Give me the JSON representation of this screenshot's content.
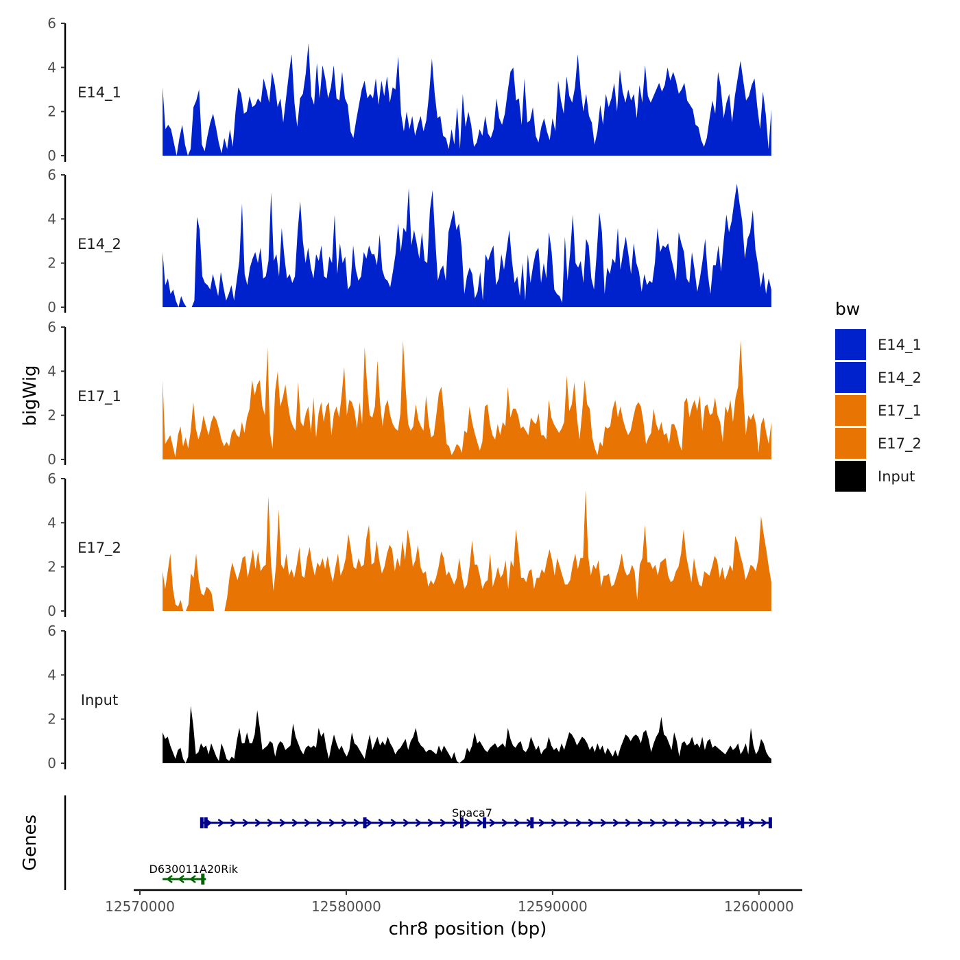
{
  "chart_data": {
    "type": "area",
    "chromosome": "chr8",
    "x_axis": {
      "label": "chr8 position (bp)",
      "range": [
        12569700,
        12602100
      ],
      "ticks": [
        12570000,
        12580000,
        12590000,
        12600000
      ],
      "tick_labels": [
        "12570000",
        "12580000",
        "12590000",
        "12600000"
      ]
    },
    "y_axis": {
      "label": "bigWig",
      "range": [
        0,
        6
      ],
      "ticks": [
        0,
        2,
        4,
        6
      ],
      "tick_labels": [
        "0",
        "2",
        "4",
        "6"
      ]
    },
    "genes_axis_label": "Genes",
    "legend": {
      "title": "bw",
      "items": [
        {
          "label": "E14_1",
          "color": "#0022CC"
        },
        {
          "label": "E14_2",
          "color": "#0022CC"
        },
        {
          "label": "E17_1",
          "color": "#E87503"
        },
        {
          "label": "E17_2",
          "color": "#E87503"
        },
        {
          "label": "Input",
          "color": "#000000"
        }
      ]
    },
    "tracks": [
      {
        "name": "E14_1",
        "color": "#0022CC",
        "x_start": 12571100,
        "x_end": 12600600,
        "values": [
          3.1,
          1.2,
          1.4,
          1.2,
          0.6,
          0.0,
          0.8,
          1.4,
          0.5,
          0.0,
          0.3,
          2.2,
          2.5,
          3.0,
          0.5,
          0.2,
          0.9,
          1.5,
          1.9,
          1.3,
          0.6,
          0.1,
          0.8,
          0.3,
          1.2,
          0.4,
          2.0,
          3.1,
          2.8,
          1.9,
          2.0,
          2.7,
          2.2,
          2.3,
          2.6,
          2.4,
          3.5,
          3.0,
          2.4,
          3.8,
          3.2,
          2.2,
          2.6,
          1.5,
          2.6,
          3.7,
          4.6,
          2.4,
          1.3,
          2.6,
          2.8,
          3.7,
          5.1,
          2.7,
          2.3,
          4.2,
          2.6,
          4.1,
          3.5,
          2.6,
          3.1,
          4.1,
          2.6,
          2.5,
          3.8,
          2.6,
          2.3,
          1.1,
          0.8,
          1.6,
          2.3,
          3.0,
          3.4,
          2.6,
          2.8,
          2.6,
          3.5,
          2.3,
          3.4,
          2.7,
          3.6,
          2.4,
          3.1,
          3.0,
          4.5,
          1.9,
          1.1,
          2.0,
          1.2,
          1.8,
          0.9,
          1.4,
          1.8,
          1.1,
          1.6,
          2.8,
          4.4,
          2.8,
          1.7,
          1.8,
          0.9,
          0.8,
          0.3,
          1.2,
          0.5,
          2.2,
          0.3,
          2.8,
          1.3,
          2.0,
          1.4,
          0.4,
          0.6,
          1.2,
          0.9,
          1.8,
          1.0,
          0.8,
          1.2,
          2.6,
          1.7,
          1.4,
          1.9,
          2.9,
          3.8,
          4.0,
          2.5,
          2.6,
          1.4,
          3.5,
          1.5,
          1.6,
          2.2,
          0.9,
          0.6,
          1.3,
          1.7,
          1.1,
          0.7,
          1.7,
          1.1,
          3.4,
          2.5,
          1.9,
          3.6,
          2.7,
          2.4,
          3.1,
          4.6,
          3.0,
          2.0,
          2.8,
          1.8,
          1.5,
          0.5,
          1.1,
          2.3,
          1.4,
          2.8,
          2.2,
          2.6,
          3.3,
          2.0,
          3.9,
          2.9,
          2.4,
          3.0,
          2.5,
          2.8,
          1.7,
          3.2,
          2.4,
          4.1,
          2.7,
          2.4,
          2.7,
          3.0,
          3.3,
          2.9,
          3.2,
          4.0,
          3.4,
          3.8,
          3.4,
          2.8,
          3.0,
          3.3,
          2.5,
          2.3,
          2.1,
          1.4,
          1.3,
          0.7,
          0.4,
          0.8,
          1.7,
          2.5,
          1.9,
          3.8,
          3.1,
          1.7,
          2.4,
          2.8,
          1.5,
          2.7,
          3.5,
          4.3,
          3.4,
          2.5,
          2.7,
          3.2,
          3.5,
          2.2,
          1.2,
          2.9,
          1.9,
          0.3,
          2.1
        ]
      },
      {
        "name": "E14_2",
        "color": "#0022CC",
        "x_start": 12571100,
        "x_end": 12600600,
        "values": [
          2.5,
          1.0,
          1.3,
          0.6,
          0.8,
          0.3,
          0.0,
          0.5,
          0.2,
          0.0,
          0.0,
          0.0,
          0.3,
          4.1,
          3.5,
          1.4,
          1.1,
          1.0,
          0.8,
          1.5,
          1.0,
          0.5,
          1.6,
          0.9,
          0.3,
          0.6,
          1.0,
          0.3,
          1.2,
          2.1,
          4.7,
          1.5,
          1.0,
          1.8,
          2.2,
          2.5,
          2.0,
          2.7,
          1.3,
          1.4,
          2.1,
          5.2,
          2.1,
          2.4,
          1.4,
          3.6,
          2.3,
          1.3,
          1.5,
          1.1,
          1.4,
          3.4,
          4.8,
          3.0,
          2.0,
          2.7,
          1.8,
          1.3,
          2.4,
          2.1,
          2.8,
          1.4,
          1.3,
          2.3,
          2.0,
          4.2,
          1.5,
          2.9,
          2.0,
          2.3,
          0.8,
          1.0,
          2.8,
          1.7,
          1.2,
          1.4,
          2.5,
          2.2,
          2.8,
          2.4,
          2.4,
          1.9,
          3.3,
          1.7,
          1.3,
          1.2,
          0.9,
          1.6,
          2.4,
          3.8,
          2.5,
          3.6,
          3.4,
          5.4,
          2.8,
          3.5,
          2.9,
          2.2,
          3.4,
          2.1,
          2.0,
          4.4,
          5.3,
          3.1,
          1.2,
          1.7,
          1.9,
          1.2,
          3.4,
          3.9,
          4.4,
          3.5,
          3.8,
          2.7,
          0.6,
          1.4,
          1.8,
          1.5,
          0.4,
          0.7,
          1.6,
          0.3,
          2.4,
          2.1,
          2.5,
          2.8,
          1.0,
          1.3,
          2.4,
          1.7,
          2.6,
          3.5,
          2.1,
          1.1,
          1.4,
          0.5,
          2.0,
          0.3,
          2.4,
          1.1,
          1.9,
          2.5,
          2.7,
          1.1,
          2.0,
          1.3,
          3.4,
          2.5,
          0.8,
          0.6,
          0.5,
          0.2,
          3.2,
          1.2,
          2.5,
          4.2,
          2.0,
          1.8,
          2.1,
          1.1,
          3.1,
          2.8,
          1.3,
          0.8,
          2.4,
          4.3,
          3.4,
          0.6,
          1.8,
          1.5,
          2.2,
          2.0,
          3.6,
          1.7,
          2.5,
          3.2,
          2.4,
          1.5,
          2.9,
          2.0,
          1.6,
          0.7,
          1.5,
          1.0,
          1.2,
          1.1,
          2.0,
          3.6,
          2.5,
          2.8,
          2.7,
          2.9,
          2.3,
          1.8,
          1.2,
          3.4,
          2.9,
          2.5,
          1.3,
          1.1,
          2.5,
          1.7,
          0.7,
          1.3,
          2.1,
          3.1,
          1.5,
          0.6,
          1.9,
          1.9,
          2.8,
          1.6,
          3.0,
          4.2,
          3.4,
          3.9,
          4.8,
          5.6,
          4.7,
          3.9,
          2.2,
          3.1,
          3.4,
          4.4,
          2.6,
          1.9,
          0.9,
          1.6,
          0.6,
          1.3,
          0.8
        ]
      },
      {
        "name": "E17_1",
        "color": "#E87503",
        "x_start": 12571100,
        "x_end": 12600600,
        "values": [
          3.6,
          0.7,
          0.9,
          1.1,
          0.6,
          0.1,
          1.1,
          1.5,
          0.6,
          1.0,
          0.5,
          1.3,
          2.6,
          1.4,
          0.9,
          1.3,
          2.0,
          1.5,
          1.1,
          1.7,
          2.0,
          1.8,
          1.4,
          0.9,
          0.6,
          0.8,
          0.6,
          1.2,
          1.4,
          1.1,
          1.0,
          1.7,
          1.2,
          1.9,
          2.3,
          3.6,
          2.9,
          3.4,
          3.6,
          2.4,
          2.0,
          5.1,
          1.2,
          0.5,
          3.1,
          4.0,
          2.4,
          2.8,
          3.4,
          2.5,
          1.8,
          1.5,
          1.3,
          3.5,
          1.7,
          1.5,
          2.1,
          2.4,
          1.2,
          2.8,
          1.0,
          2.1,
          2.6,
          1.7,
          2.4,
          2.6,
          1.1,
          2.1,
          2.4,
          1.9,
          2.9,
          4.2,
          2.0,
          2.7,
          2.6,
          2.2,
          1.4,
          2.6,
          1.6,
          5.1,
          3.3,
          2.0,
          1.9,
          2.4,
          4.5,
          2.6,
          1.5,
          2.4,
          2.7,
          2.0,
          1.6,
          1.4,
          1.3,
          2.1,
          5.4,
          3.3,
          1.6,
          1.3,
          1.5,
          2.5,
          1.8,
          1.5,
          1.3,
          2.9,
          1.7,
          1.0,
          1.1,
          2.0,
          3.0,
          3.3,
          2.1,
          0.7,
          0.6,
          0.2,
          0.4,
          0.7,
          0.6,
          0.3,
          1.3,
          1.2,
          2.4,
          1.7,
          1.2,
          0.8,
          0.4,
          0.8,
          2.4,
          2.5,
          1.6,
          1.1,
          0.9,
          1.6,
          1.1,
          1.7,
          1.5,
          3.3,
          1.9,
          2.3,
          2.3,
          2.0,
          1.4,
          1.5,
          1.3,
          1.1,
          1.9,
          1.7,
          1.6,
          2.1,
          1.1,
          1.1,
          0.9,
          2.7,
          1.9,
          1.6,
          1.4,
          1.2,
          1.4,
          1.7,
          3.8,
          2.2,
          2.5,
          3.5,
          1.9,
          0.9,
          2.1,
          3.6,
          2.5,
          2.3,
          1.0,
          0.5,
          0.2,
          0.8,
          0.6,
          1.5,
          1.4,
          1.5,
          2.3,
          2.7,
          1.9,
          2.4,
          1.8,
          1.4,
          1.1,
          1.3,
          1.9,
          2.4,
          2.6,
          2.4,
          1.7,
          0.7,
          1.0,
          1.2,
          2.3,
          1.6,
          1.3,
          1.7,
          1.1,
          1.2,
          0.7,
          1.6,
          1.6,
          1.3,
          0.7,
          0.4,
          2.6,
          2.8,
          1.9,
          2.4,
          2.7,
          2.2,
          2.9,
          1.3,
          2.4,
          2.5,
          2.0,
          2.1,
          2.8,
          2.0,
          1.7,
          0.8,
          2.4,
          2.1,
          2.7,
          1.7,
          2.8,
          3.3,
          5.4,
          3.1,
          1.1,
          2.0,
          1.8,
          2.1,
          1.6,
          0.3,
          1.6,
          1.9,
          1.2,
          0.7,
          1.7
        ]
      },
      {
        "name": "E17_2",
        "color": "#E87503",
        "x_start": 12571100,
        "x_end": 12600600,
        "values": [
          1.8,
          1.0,
          1.8,
          2.6,
          1.0,
          0.3,
          0.2,
          0.5,
          0.0,
          0.0,
          0.3,
          1.7,
          1.5,
          2.6,
          1.4,
          0.8,
          0.7,
          1.1,
          1.0,
          0.8,
          0.0,
          0.0,
          0.0,
          0.0,
          0.0,
          0.6,
          1.6,
          2.2,
          1.8,
          1.4,
          1.8,
          2.4,
          2.5,
          1.5,
          2.1,
          2.8,
          1.9,
          2.7,
          1.8,
          2.0,
          2.1,
          5.2,
          2.2,
          0.9,
          2.1,
          4.6,
          2.1,
          1.9,
          2.6,
          1.6,
          1.9,
          1.5,
          2.1,
          2.9,
          1.6,
          1.5,
          2.4,
          2.9,
          2.1,
          1.6,
          2.2,
          2.0,
          2.4,
          1.9,
          2.5,
          1.8,
          1.3,
          2.0,
          2.6,
          1.6,
          1.9,
          2.4,
          3.5,
          2.8,
          2.0,
          1.9,
          2.4,
          2.0,
          2.1,
          3.3,
          3.9,
          2.1,
          2.2,
          3.2,
          2.3,
          1.7,
          2.0,
          2.6,
          3.0,
          2.8,
          1.8,
          2.4,
          2.0,
          3.2,
          2.3,
          3.7,
          3.0,
          2.0,
          2.3,
          3.0,
          2.0,
          1.7,
          1.8,
          1.1,
          1.4,
          1.2,
          1.5,
          2.0,
          2.7,
          2.4,
          1.6,
          1.8,
          1.5,
          1.2,
          1.5,
          2.4,
          1.6,
          1.0,
          1.2,
          2.0,
          3.2,
          2.1,
          2.1,
          1.6,
          1.0,
          1.3,
          1.4,
          2.6,
          1.1,
          1.5,
          2.0,
          1.5,
          1.7,
          2.3,
          1.0,
          2.3,
          2.0,
          3.7,
          2.7,
          1.5,
          1.5,
          1.3,
          1.8,
          1.9,
          1.0,
          1.5,
          1.5,
          1.9,
          1.7,
          2.3,
          2.8,
          2.3,
          1.6,
          2.4,
          2.0,
          1.6,
          1.2,
          1.2,
          1.4,
          2.1,
          2.6,
          1.9,
          2.4,
          2.4,
          5.5,
          2.5,
          1.6,
          2.1,
          1.9,
          2.3,
          1.1,
          1.6,
          1.6,
          1.7,
          1.1,
          1.2,
          1.6,
          2.0,
          2.6,
          1.9,
          1.6,
          1.7,
          2.1,
          1.8,
          0.5,
          2.1,
          2.4,
          3.9,
          2.2,
          2.2,
          1.9,
          2.1,
          1.6,
          2.2,
          2.3,
          2.4,
          1.6,
          1.3,
          1.4,
          1.8,
          2.0,
          2.6,
          3.7,
          2.5,
          1.9,
          1.3,
          2.4,
          1.7,
          1.2,
          1.1,
          1.8,
          1.7,
          1.6,
          2.0,
          2.5,
          2.3,
          1.5,
          2.0,
          1.4,
          1.7,
          2.1,
          1.8,
          3.4,
          3.1,
          2.5,
          2.1,
          1.4,
          1.7,
          2.1,
          2.0,
          1.8,
          2.4,
          4.3,
          3.5,
          2.8,
          2.0,
          1.3
        ]
      },
      {
        "name": "Input",
        "color": "#000000",
        "x_start": 12571100,
        "x_end": 12600600,
        "values": [
          1.4,
          1.1,
          1.2,
          0.8,
          0.5,
          0.2,
          0.6,
          0.7,
          0.2,
          0.0,
          0.3,
          2.6,
          1.7,
          0.4,
          0.5,
          0.9,
          0.7,
          0.8,
          0.4,
          0.9,
          0.6,
          0.3,
          0.1,
          0.9,
          0.6,
          0.2,
          0.1,
          0.3,
          0.2,
          1.0,
          1.6,
          0.9,
          0.9,
          1.4,
          0.9,
          0.9,
          1.3,
          2.4,
          1.6,
          0.6,
          0.7,
          0.8,
          1.0,
          0.9,
          0.3,
          0.8,
          1.0,
          0.9,
          0.6,
          0.7,
          0.8,
          1.8,
          1.2,
          0.9,
          0.6,
          0.4,
          0.7,
          0.8,
          0.7,
          0.8,
          0.7,
          1.6,
          1.2,
          1.4,
          0.7,
          0.2,
          0.8,
          1.3,
          0.9,
          0.6,
          0.8,
          0.5,
          0.3,
          0.6,
          1.4,
          0.9,
          0.8,
          0.6,
          0.4,
          0.2,
          0.8,
          1.3,
          0.6,
          0.9,
          1.2,
          0.8,
          1.0,
          0.8,
          1.2,
          0.9,
          0.7,
          0.4,
          0.6,
          0.7,
          0.9,
          1.1,
          0.6,
          1.0,
          1.2,
          1.6,
          1.0,
          0.8,
          0.7,
          0.5,
          0.6,
          0.6,
          0.5,
          0.4,
          0.8,
          0.5,
          0.8,
          0.6,
          0.4,
          0.2,
          0.5,
          0.1,
          0.0,
          0.1,
          0.2,
          0.7,
          0.5,
          0.8,
          1.4,
          0.9,
          1.0,
          0.8,
          0.6,
          0.5,
          0.7,
          0.8,
          0.9,
          0.7,
          0.8,
          0.9,
          0.7,
          1.6,
          1.1,
          0.8,
          0.7,
          0.9,
          1.0,
          0.6,
          0.5,
          0.7,
          1.2,
          0.9,
          0.6,
          0.8,
          0.4,
          0.6,
          0.7,
          1.2,
          0.8,
          0.6,
          0.7,
          0.5,
          0.9,
          0.6,
          1.0,
          1.4,
          1.3,
          1.1,
          0.8,
          1.0,
          1.2,
          1.1,
          0.9,
          0.6,
          0.8,
          0.5,
          0.9,
          0.6,
          0.8,
          0.4,
          0.7,
          0.5,
          0.3,
          0.6,
          0.3,
          0.7,
          1.0,
          1.3,
          1.2,
          1.0,
          1.2,
          1.3,
          1.2,
          0.9,
          1.4,
          1.5,
          1.1,
          0.5,
          0.9,
          1.2,
          1.4,
          2.1,
          1.3,
          1.2,
          0.9,
          0.6,
          1.4,
          1.0,
          0.3,
          0.9,
          1.0,
          0.8,
          0.9,
          1.2,
          0.8,
          0.9,
          0.7,
          1.2,
          0.6,
          1.0,
          1.1,
          0.7,
          0.8,
          0.7,
          0.6,
          0.5,
          0.4,
          0.6,
          0.8,
          0.6,
          0.7,
          0.9,
          0.4,
          0.6,
          0.9,
          0.4,
          1.6,
          0.8,
          0.4,
          0.6,
          1.1,
          0.9,
          0.5,
          0.3,
          0.2
        ]
      }
    ],
    "genes": [
      {
        "name": "Spaca7",
        "start": 12573000,
        "end": 12600600,
        "strand": "+",
        "color": "#00008B",
        "exons": [
          12573000,
          12573200,
          12580900,
          12585600,
          12586700,
          12589000,
          12599200,
          12600550
        ]
      },
      {
        "name": "D630011A20Rik",
        "start": 12571100,
        "end": 12573200,
        "strand": "-",
        "color": "#006400",
        "exons": [
          12573050
        ]
      }
    ]
  }
}
